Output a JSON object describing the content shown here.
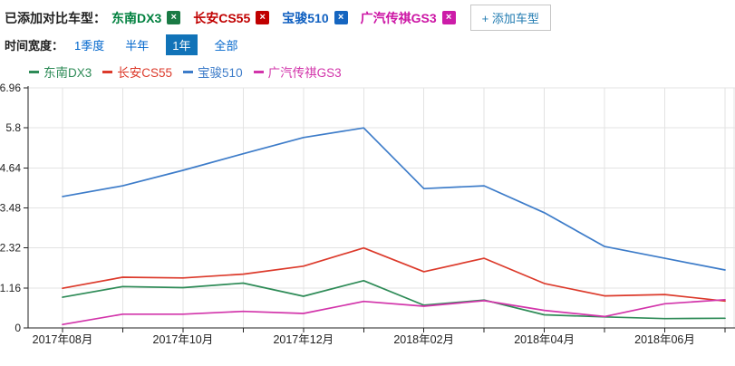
{
  "toolbar": {
    "added_label": "已添加对比车型：",
    "remove_icon": "×",
    "models": [
      {
        "name": "东南DX3",
        "color": "#00803e",
        "badge": "#1a7a44"
      },
      {
        "name": "长安CS55",
        "color": "#c00000",
        "badge": "#c00000"
      },
      {
        "name": "宝骏510",
        "color": "#1060c0",
        "badge": "#1565c0"
      },
      {
        "name": "广汽传祺GS3",
        "color": "#cc14a4",
        "badge": "#cc1ca8"
      }
    ],
    "add_button_label": "+ 添加车型"
  },
  "time_selector": {
    "label": "时间宽度：",
    "options": [
      {
        "label": "1季度",
        "selected": false
      },
      {
        "label": "半年",
        "selected": false
      },
      {
        "label": "1年",
        "selected": true
      },
      {
        "label": "全部",
        "selected": false
      }
    ],
    "selected_bg": "#1173b8",
    "link_color": "#0066cc"
  },
  "chart_data": {
    "type": "line",
    "title": "",
    "xlabel": "",
    "ylabel": "",
    "x": [
      "2017年08月",
      "2017年09月",
      "2017年10月",
      "2017年11月",
      "2017年12月",
      "2018年01月",
      "2018年02月",
      "2018年03月",
      "2018年04月",
      "2018年05月",
      "2018年06月",
      "2018年07月"
    ],
    "x_axis_labels": [
      "2017年08月",
      "2017年10月",
      "2017年12月",
      "2018年02月",
      "2018年04月",
      "2018年06月"
    ],
    "yticks": [
      0,
      1.16,
      2.32,
      3.48,
      4.64,
      5.8,
      6.96
    ],
    "ylim": [
      0,
      6.96
    ],
    "grid": true,
    "legend_position": "top",
    "series": [
      {
        "name": "东南DX3",
        "color": "#2e8b57",
        "values": [
          0.89,
          1.2,
          1.17,
          1.3,
          0.92,
          1.37,
          0.66,
          0.81,
          0.38,
          0.32,
          0.27,
          0.28
        ]
      },
      {
        "name": "长安CS55",
        "color": "#dc3a2b",
        "values": [
          1.15,
          1.47,
          1.45,
          1.56,
          1.79,
          2.32,
          1.63,
          2.02,
          1.29,
          0.93,
          0.97,
          0.78
        ]
      },
      {
        "name": "宝骏510",
        "color": "#3d7cc9",
        "values": [
          3.81,
          4.12,
          4.57,
          5.05,
          5.52,
          5.8,
          4.04,
          4.12,
          3.34,
          2.36,
          2.02,
          1.68
        ]
      },
      {
        "name": "广汽传祺GS3",
        "color": "#d234aa",
        "values": [
          0.1,
          0.4,
          0.4,
          0.48,
          0.42,
          0.77,
          0.63,
          0.79,
          0.51,
          0.33,
          0.7,
          0.82
        ]
      }
    ]
  }
}
